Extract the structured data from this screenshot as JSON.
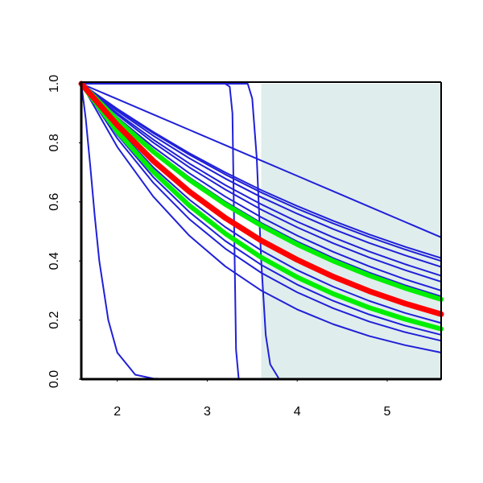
{
  "chart_data": {
    "type": "line",
    "xlim": [
      1.6,
      5.6
    ],
    "ylim": [
      0,
      1
    ],
    "xticks": [
      2,
      3,
      4,
      5
    ],
    "yticks": [
      {
        "value": 0,
        "label": "0.0"
      },
      {
        "value": 0.2,
        "label": "0.2"
      },
      {
        "value": 0.4,
        "label": "0.4"
      },
      {
        "value": 0.6,
        "label": "0.6"
      },
      {
        "value": 0.8,
        "label": "0.8"
      },
      {
        "value": 1,
        "label": "1.0"
      }
    ],
    "shaded_region": {
      "x": [
        3.6,
        5.6
      ],
      "color": "#e0eded"
    },
    "series": [
      {
        "color": "#2020d8",
        "line_width": 2,
        "x": [
          1.6,
          2.0,
          2.4,
          2.8,
          3.2,
          3.6,
          4.0,
          4.4,
          4.8,
          5.2,
          5.6
        ],
        "values": [
          1,
          0.948,
          0.896,
          0.844,
          0.792,
          0.74,
          0.688,
          0.636,
          0.584,
          0.532,
          0.48
        ]
      },
      {
        "color": "#2020d8",
        "line_width": 2,
        "x": [
          1.6,
          2.0,
          2.4,
          2.8,
          3.2,
          3.6,
          4.0,
          4.4,
          4.8,
          5.2,
          5.6
        ],
        "values": [
          1,
          0.915,
          0.837,
          0.765,
          0.7,
          0.64,
          0.586,
          0.536,
          0.49,
          0.448,
          0.41
        ]
      },
      {
        "color": "#2020d8",
        "line_width": 2,
        "x": [
          1.6,
          2.0,
          2.4,
          2.8,
          3.2,
          3.6,
          4.0,
          4.4,
          4.8,
          5.2,
          5.6
        ],
        "values": [
          1,
          0.912,
          0.833,
          0.76,
          0.693,
          0.632,
          0.577,
          0.527,
          0.481,
          0.439,
          0.4
        ]
      },
      {
        "color": "#2020d8",
        "line_width": 2,
        "x": [
          1.6,
          2.0,
          2.4,
          2.8,
          3.2,
          3.6,
          4.0,
          4.4,
          4.8,
          5.2,
          5.6
        ],
        "values": [
          1,
          0.908,
          0.824,
          0.748,
          0.679,
          0.616,
          0.56,
          0.508,
          0.461,
          0.419,
          0.38
        ]
      },
      {
        "color": "#2020d8",
        "line_width": 2,
        "x": [
          1.6,
          2.0,
          2.4,
          2.8,
          3.2,
          3.6,
          4.0,
          4.4,
          4.8,
          5.2,
          5.6
        ],
        "values": [
          1,
          0.9,
          0.811,
          0.73,
          0.657,
          0.592,
          0.533,
          0.48,
          0.432,
          0.389,
          0.35
        ]
      },
      {
        "color": "#2020d8",
        "line_width": 2,
        "x": [
          1.6,
          2.0,
          2.4,
          2.8,
          3.2,
          3.6,
          4.0,
          4.4,
          4.8,
          5.2,
          5.6
        ],
        "values": [
          1,
          0.895,
          0.801,
          0.717,
          0.642,
          0.574,
          0.514,
          0.46,
          0.412,
          0.369,
          0.33
        ]
      },
      {
        "color": "#2020d8",
        "line_width": 2,
        "x": [
          1.6,
          2.0,
          2.4,
          2.8,
          3.2,
          3.6,
          4.0,
          4.4,
          4.8,
          5.2,
          5.6
        ],
        "values": [
          1,
          0.886,
          0.786,
          0.697,
          0.618,
          0.548,
          0.486,
          0.431,
          0.382,
          0.338,
          0.3
        ]
      },
      {
        "color": "#2020d8",
        "line_width": 2,
        "x": [
          1.6,
          2.0,
          2.4,
          2.8,
          3.2,
          3.6,
          4.0,
          4.4,
          4.8,
          5.2,
          5.6
        ],
        "values": [
          1,
          0.88,
          0.775,
          0.683,
          0.601,
          0.529,
          0.466,
          0.41,
          0.361,
          0.318,
          0.28
        ]
      },
      {
        "color": "#2020d8",
        "line_width": 2,
        "x": [
          1.6,
          2.0,
          2.4,
          2.8,
          3.2,
          3.6,
          4.0,
          4.4,
          4.8,
          5.2,
          5.6
        ],
        "values": [
          1,
          0.847,
          0.717,
          0.608,
          0.515,
          0.436,
          0.369,
          0.313,
          0.265,
          0.224,
          0.19
        ]
      },
      {
        "color": "#2020d8",
        "line_width": 2,
        "x": [
          1.6,
          2.0,
          2.4,
          2.8,
          3.2,
          3.6,
          4.0,
          4.4,
          4.8,
          5.2,
          5.6
        ],
        "values": [
          1,
          0.838,
          0.702,
          0.588,
          0.493,
          0.412,
          0.345,
          0.289,
          0.242,
          0.203,
          0.17
        ]
      },
      {
        "color": "#2020d8",
        "line_width": 2,
        "x": [
          1.6,
          2.0,
          2.4,
          2.8,
          3.2,
          3.6,
          4.0,
          4.4,
          4.8,
          5.2,
          5.6
        ],
        "values": [
          1,
          0.827,
          0.684,
          0.566,
          0.468,
          0.387,
          0.32,
          0.265,
          0.219,
          0.181,
          0.15
        ]
      },
      {
        "color": "#2020d8",
        "line_width": 2,
        "x": [
          1.6,
          2.0,
          2.4,
          2.8,
          3.2,
          3.6,
          4.0,
          4.4,
          4.8,
          5.2,
          5.6
        ],
        "values": [
          1,
          0.815,
          0.665,
          0.542,
          0.442,
          0.36,
          0.294,
          0.24,
          0.195,
          0.159,
          0.13
        ]
      },
      {
        "color": "#2020d8",
        "line_width": 2,
        "x": [
          1.6,
          2.0,
          2.4,
          2.8,
          3.2,
          3.6,
          4.0,
          4.4,
          4.8,
          5.2,
          5.6
        ],
        "values": [
          1,
          0.786,
          0.618,
          0.486,
          0.382,
          0.3,
          0.236,
          0.186,
          0.146,
          0.115,
          0.09
        ]
      },
      {
        "color": "#2020d8",
        "line_width": 2,
        "x": [
          1.6,
          1.65,
          1.7,
          1.75,
          1.8,
          1.9,
          2.0,
          2.2,
          2.4,
          2.6,
          5.6
        ],
        "values": [
          1,
          0.88,
          0.72,
          0.55,
          0.4,
          0.2,
          0.09,
          0.015,
          0.002,
          0,
          0
        ]
      },
      {
        "color": "#2020d8",
        "line_width": 2,
        "x": [
          1.6,
          3.2,
          3.25,
          3.28,
          3.3,
          3.32,
          3.35,
          5.6
        ],
        "values": [
          1,
          1,
          0.99,
          0.9,
          0.5,
          0.1,
          0,
          0
        ]
      },
      {
        "color": "#2020d8",
        "line_width": 2,
        "x": [
          1.6,
          3.45,
          3.5,
          3.55,
          3.6,
          3.65,
          3.7,
          3.8,
          5.6
        ],
        "values": [
          1,
          1,
          0.95,
          0.75,
          0.4,
          0.15,
          0.05,
          0,
          0
        ]
      },
      {
        "color": "#00ee00",
        "line_width": 6,
        "x": [
          1.6,
          2.0,
          2.4,
          2.8,
          3.2,
          3.6,
          4.0,
          4.4,
          4.8,
          5.2,
          5.6
        ],
        "values": [
          1,
          0.877,
          0.77,
          0.675,
          0.592,
          0.52,
          0.456,
          0.4,
          0.351,
          0.308,
          0.27
        ]
      },
      {
        "color": "#00ee00",
        "line_width": 6,
        "x": [
          1.6,
          2.0,
          2.4,
          2.8,
          3.2,
          3.6,
          4.0,
          4.4,
          4.8,
          5.2,
          5.6
        ],
        "values": [
          1,
          0.838,
          0.702,
          0.588,
          0.493,
          0.412,
          0.345,
          0.289,
          0.242,
          0.203,
          0.17
        ]
      },
      {
        "color": "#ff0000",
        "line_width": 7,
        "x": [
          1.6,
          2.0,
          2.4,
          2.8,
          3.2,
          3.6,
          4.0,
          4.4,
          4.8,
          5.2,
          5.6
        ],
        "values": [
          1,
          0.86,
          0.739,
          0.635,
          0.546,
          0.469,
          0.404,
          0.347,
          0.298,
          0.256,
          0.22
        ]
      }
    ]
  }
}
